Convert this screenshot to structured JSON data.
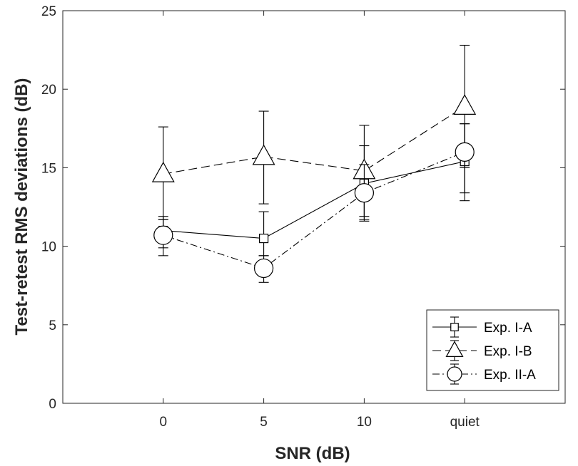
{
  "chart_data": {
    "type": "line",
    "title": "",
    "xlabel": "SNR (dB)",
    "ylabel": "Test-retest RMS deviations (dB)",
    "categories": [
      "0",
      "5",
      "10",
      "quiet"
    ],
    "ylim": [
      0,
      25
    ],
    "yticks": [
      "0",
      "5",
      "10",
      "15",
      "20",
      "25"
    ],
    "grid": false,
    "legend_position": "bottom-right",
    "series": [
      {
        "name": "Exp. I-A",
        "marker": "square",
        "line_style": "solid",
        "values": [
          11.0,
          10.5,
          14.0,
          15.4
        ],
        "err_low": [
          9.9,
          9.4,
          11.7,
          13.4
        ],
        "err_high": [
          11.9,
          12.2,
          16.4,
          17.8
        ]
      },
      {
        "name": "Exp. I-B",
        "marker": "triangle",
        "line_style": "dashed",
        "values": [
          14.6,
          15.7,
          14.8,
          18.9
        ],
        "err_low": [
          11.7,
          12.7,
          11.9,
          15.0
        ],
        "err_high": [
          17.6,
          18.6,
          17.7,
          22.8
        ]
      },
      {
        "name": "Exp. II-A",
        "marker": "circle",
        "line_style": "dashdot",
        "values": [
          10.7,
          8.6,
          13.4,
          16.0
        ],
        "err_low": [
          9.4,
          7.7,
          11.6,
          12.9
        ],
        "err_high": [
          11.7,
          9.4,
          15.2,
          17.8
        ]
      }
    ]
  }
}
